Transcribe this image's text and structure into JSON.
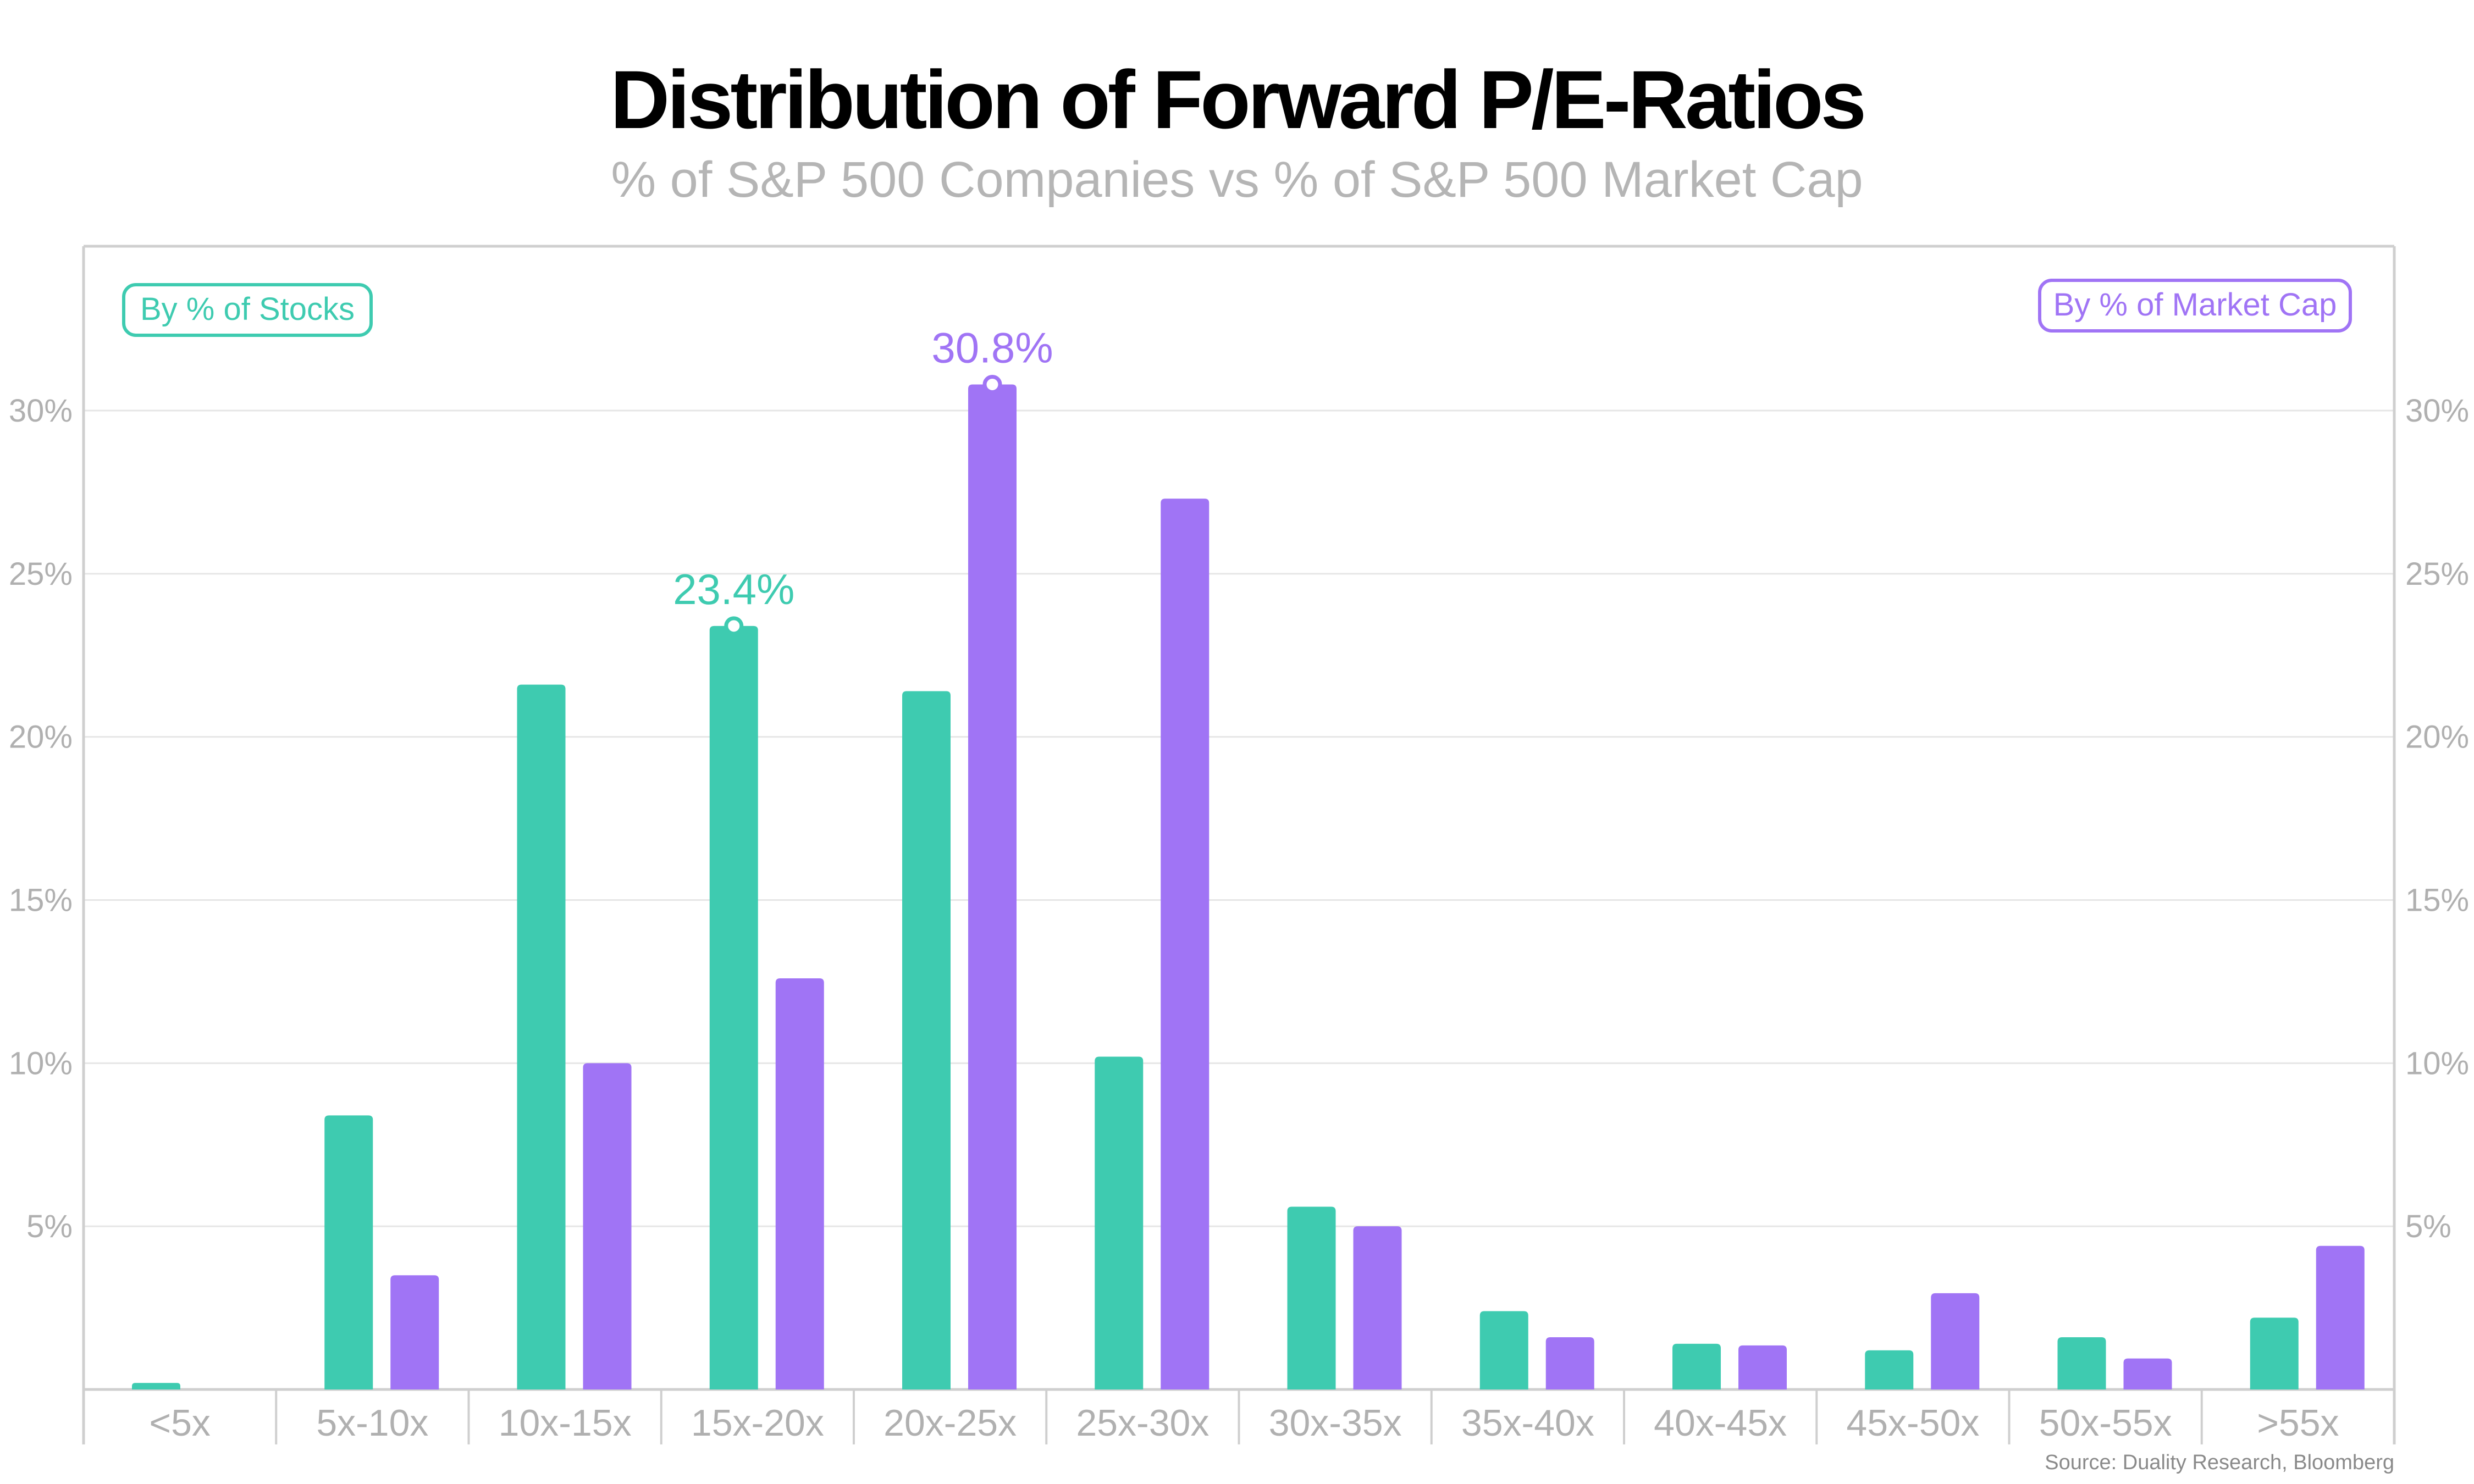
{
  "title": "Distribution of Forward P/E-Ratios",
  "subtitle": "% of S&P 500 Companies vs % of S&P 500 Market Cap",
  "source": "Source: Duality Research, Bloomberg",
  "colors": {
    "stocks": "#3ecbb0",
    "market_cap": "#a074f5",
    "axis_text": "#b0b0b0",
    "grid": "#e6e6e6",
    "frame": "#cfcfcf"
  },
  "chart_data": {
    "type": "bar",
    "categories": [
      "<5x",
      "5x-10x",
      "10x-15x",
      "15x-20x",
      "20x-25x",
      "25x-30x",
      "30x-35x",
      "35x-40x",
      "40x-45x",
      "45x-50x",
      "50x-55x",
      ">55x"
    ],
    "series": [
      {
        "name": "By % of Stocks",
        "values": [
          0.2,
          8.4,
          21.6,
          23.4,
          21.4,
          10.2,
          5.6,
          2.4,
          1.4,
          1.2,
          1.6,
          2.2
        ]
      },
      {
        "name": "By % of Market Cap",
        "values": [
          0.0,
          3.5,
          10.0,
          12.6,
          30.8,
          27.3,
          5.0,
          1.6,
          1.35,
          2.95,
          0.95,
          4.4
        ]
      }
    ],
    "annotations": [
      {
        "series": 0,
        "category": "15x-20x",
        "text": "23.4%"
      },
      {
        "series": 1,
        "category": "20x-25x",
        "text": "30.8%"
      }
    ],
    "yticks": [
      "5%",
      "10%",
      "15%",
      "20%",
      "25%",
      "30%"
    ],
    "ytick_values": [
      5,
      10,
      15,
      20,
      25,
      30
    ],
    "ylim": [
      0,
      30
    ],
    "legend": "top-left and top-right boxed labels",
    "grid": true
  }
}
